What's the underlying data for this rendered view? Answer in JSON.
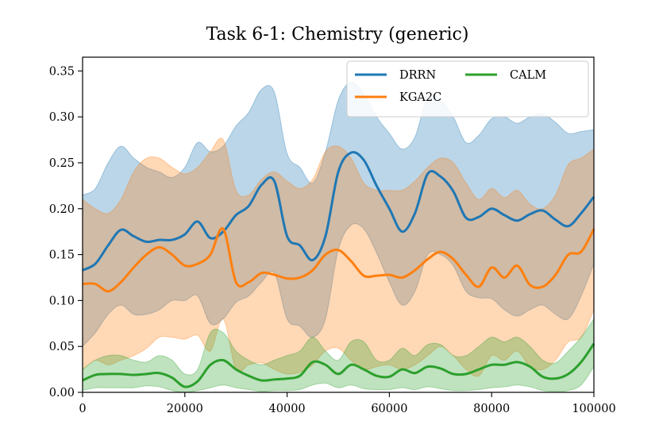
{
  "chart_data": {
    "type": "line",
    "title": "Task 6-1: Chemistry (generic)",
    "xlabel": "",
    "ylabel": "",
    "xlim": [
      0,
      100000
    ],
    "ylim": [
      0,
      0.365
    ],
    "x_ticks": [
      0,
      20000,
      40000,
      60000,
      80000,
      100000
    ],
    "x_tick_labels": [
      "0",
      "20000",
      "40000",
      "60000",
      "80000",
      "100000"
    ],
    "y_ticks": [
      0.0,
      0.05,
      0.1,
      0.15,
      0.2,
      0.25,
      0.3,
      0.35
    ],
    "y_tick_labels": [
      "0.00",
      "0.05",
      "0.10",
      "0.15",
      "0.20",
      "0.25",
      "0.30",
      "0.35"
    ],
    "grid": false,
    "legend_location": "top-right",
    "x": [
      0,
      2500,
      5000,
      7500,
      10000,
      12500,
      15000,
      17500,
      20000,
      22500,
      25000,
      27500,
      30000,
      32500,
      35000,
      37500,
      40000,
      42500,
      45000,
      47500,
      50000,
      52500,
      55000,
      57500,
      60000,
      62500,
      65000,
      67500,
      70000,
      72500,
      75000,
      77500,
      80000,
      82500,
      85000,
      87500,
      90000,
      92500,
      95000,
      97500,
      100000
    ],
    "series": [
      {
        "name": "DRRN",
        "color": "#1f77b4",
        "mean": [
          0.133,
          0.14,
          0.16,
          0.177,
          0.17,
          0.164,
          0.166,
          0.166,
          0.172,
          0.186,
          0.168,
          0.175,
          0.193,
          0.203,
          0.226,
          0.23,
          0.17,
          0.16,
          0.144,
          0.17,
          0.24,
          0.261,
          0.253,
          0.225,
          0.2,
          0.175,
          0.195,
          0.238,
          0.235,
          0.219,
          0.19,
          0.191,
          0.2,
          0.193,
          0.187,
          0.194,
          0.198,
          0.188,
          0.181,
          0.195,
          0.213
        ],
        "upper": [
          0.215,
          0.222,
          0.25,
          0.268,
          0.255,
          0.245,
          0.24,
          0.234,
          0.245,
          0.272,
          0.262,
          0.268,
          0.29,
          0.305,
          0.33,
          0.327,
          0.26,
          0.245,
          0.228,
          0.262,
          0.318,
          0.338,
          0.325,
          0.3,
          0.282,
          0.265,
          0.278,
          0.322,
          0.318,
          0.3,
          0.272,
          0.28,
          0.298,
          0.3,
          0.293,
          0.3,
          0.303,
          0.294,
          0.282,
          0.284,
          0.286
        ],
        "lower": [
          0.05,
          0.065,
          0.085,
          0.095,
          0.085,
          0.085,
          0.09,
          0.1,
          0.1,
          0.105,
          0.075,
          0.08,
          0.098,
          0.105,
          0.12,
          0.13,
          0.08,
          0.072,
          0.06,
          0.08,
          0.155,
          0.182,
          0.178,
          0.152,
          0.12,
          0.095,
          0.11,
          0.15,
          0.15,
          0.138,
          0.11,
          0.103,
          0.102,
          0.09,
          0.083,
          0.09,
          0.095,
          0.085,
          0.08,
          0.105,
          0.14
        ]
      },
      {
        "name": "KGA2C",
        "color": "#ff7f0e",
        "mean": [
          0.118,
          0.118,
          0.11,
          0.12,
          0.136,
          0.15,
          0.158,
          0.15,
          0.138,
          0.14,
          0.15,
          0.178,
          0.12,
          0.12,
          0.13,
          0.128,
          0.124,
          0.125,
          0.133,
          0.15,
          0.155,
          0.143,
          0.127,
          0.127,
          0.128,
          0.125,
          0.133,
          0.145,
          0.153,
          0.145,
          0.128,
          0.115,
          0.136,
          0.125,
          0.138,
          0.117,
          0.115,
          0.128,
          0.15,
          0.153,
          0.178
        ],
        "upper": [
          0.21,
          0.2,
          0.195,
          0.21,
          0.24,
          0.255,
          0.255,
          0.245,
          0.238,
          0.245,
          0.262,
          0.275,
          0.22,
          0.215,
          0.232,
          0.24,
          0.23,
          0.222,
          0.232,
          0.262,
          0.268,
          0.255,
          0.228,
          0.22,
          0.22,
          0.22,
          0.23,
          0.245,
          0.255,
          0.25,
          0.228,
          0.21,
          0.222,
          0.212,
          0.22,
          0.205,
          0.2,
          0.215,
          0.248,
          0.255,
          0.265
        ],
        "lower": [
          0.025,
          0.035,
          0.03,
          0.035,
          0.04,
          0.048,
          0.06,
          0.06,
          0.058,
          0.062,
          0.045,
          0.08,
          0.025,
          0.03,
          0.032,
          0.025,
          0.02,
          0.022,
          0.03,
          0.045,
          0.048,
          0.035,
          0.025,
          0.028,
          0.03,
          0.025,
          0.03,
          0.04,
          0.05,
          0.04,
          0.025,
          0.018,
          0.04,
          0.035,
          0.045,
          0.028,
          0.025,
          0.035,
          0.055,
          0.06,
          0.09
        ]
      },
      {
        "name": "CALM",
        "color": "#2ca02c",
        "mean": [
          0.013,
          0.019,
          0.02,
          0.02,
          0.019,
          0.02,
          0.021,
          0.016,
          0.006,
          0.012,
          0.03,
          0.035,
          0.025,
          0.018,
          0.013,
          0.014,
          0.015,
          0.018,
          0.033,
          0.03,
          0.02,
          0.03,
          0.025,
          0.018,
          0.017,
          0.025,
          0.021,
          0.028,
          0.026,
          0.02,
          0.02,
          0.025,
          0.03,
          0.03,
          0.033,
          0.028,
          0.017,
          0.015,
          0.02,
          0.033,
          0.053
        ],
        "upper": [
          0.025,
          0.035,
          0.04,
          0.04,
          0.035,
          0.033,
          0.04,
          0.035,
          0.02,
          0.025,
          0.065,
          0.065,
          0.045,
          0.035,
          0.03,
          0.035,
          0.04,
          0.045,
          0.06,
          0.045,
          0.035,
          0.055,
          0.055,
          0.035,
          0.035,
          0.048,
          0.04,
          0.052,
          0.052,
          0.04,
          0.04,
          0.05,
          0.06,
          0.055,
          0.06,
          0.05,
          0.035,
          0.032,
          0.045,
          0.06,
          0.08
        ],
        "lower": [
          0.002,
          0.005,
          0.005,
          0.005,
          0.005,
          0.007,
          0.006,
          0.002,
          0.0,
          0.002,
          0.005,
          0.008,
          0.005,
          0.003,
          0.001,
          0.002,
          0.002,
          0.003,
          0.008,
          0.01,
          0.005,
          0.008,
          0.004,
          0.003,
          0.003,
          0.005,
          0.003,
          0.006,
          0.004,
          0.002,
          0.002,
          0.003,
          0.005,
          0.006,
          0.008,
          0.006,
          0.002,
          0.001,
          0.002,
          0.008,
          0.028
        ]
      }
    ]
  }
}
